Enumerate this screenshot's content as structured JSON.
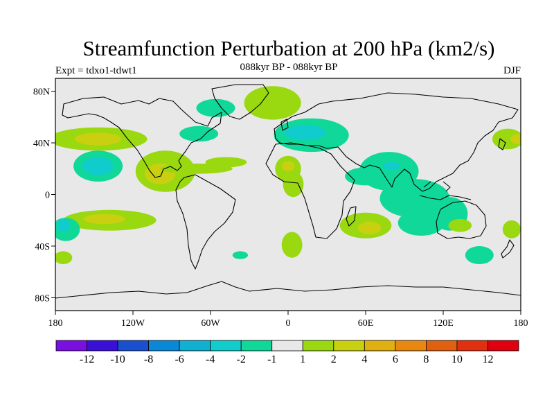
{
  "chart_data": {
    "type": "heatmap",
    "title": "Streamfunction Perturbation at 200 hPa (km2/s)",
    "subtitle": "088kyr BP - 088kyr BP",
    "left_label": "Expt = tdxo1-tdwt1",
    "right_label": "DJF",
    "xlim": [
      -180,
      180
    ],
    "ylim": [
      -90,
      90
    ],
    "x_ticks": [
      {
        "value": -180,
        "label": "180"
      },
      {
        "value": -120,
        "label": "120W"
      },
      {
        "value": -60,
        "label": "60W"
      },
      {
        "value": 0,
        "label": "0"
      },
      {
        "value": 60,
        "label": "60E"
      },
      {
        "value": 120,
        "label": "120E"
      },
      {
        "value": 180,
        "label": "180"
      }
    ],
    "y_ticks": [
      {
        "value": 80,
        "label": "80N"
      },
      {
        "value": 40,
        "label": "40N"
      },
      {
        "value": 0,
        "label": "0"
      },
      {
        "value": -40,
        "label": "40S"
      },
      {
        "value": -80,
        "label": "80S"
      }
    ],
    "colorbar": {
      "colors": [
        "#7a10e0",
        "#3a10d8",
        "#1a50d0",
        "#0a88d8",
        "#10b0d0",
        "#10cccc",
        "#10d898",
        "#e8e8e8",
        "#9ad810",
        "#c8d010",
        "#e0b010",
        "#e88810",
        "#e06010",
        "#e03010",
        "#e00010"
      ],
      "labels": [
        "-12",
        "-10",
        "-8",
        "-6",
        "-4",
        "-2",
        "-1",
        "1",
        "2",
        "4",
        "6",
        "8",
        "10",
        "12"
      ]
    },
    "regions": [
      {
        "lon": -147,
        "lat": 43,
        "rx": 38,
        "ry": 9,
        "level": 2
      },
      {
        "lon": -147,
        "lat": 43,
        "rx": 18,
        "ry": 5,
        "level": 4
      },
      {
        "lon": 170,
        "lat": 43,
        "rx": 12,
        "ry": 8,
        "level": 2
      },
      {
        "lon": 178,
        "lat": 43,
        "rx": 6,
        "ry": 4,
        "level": 4
      },
      {
        "lon": -147,
        "lat": 22,
        "rx": 19,
        "ry": 12,
        "level": -1
      },
      {
        "lon": -147,
        "lat": 22,
        "rx": 12,
        "ry": 7,
        "level": -2
      },
      {
        "lon": -95,
        "lat": 18,
        "rx": 23,
        "ry": 16,
        "level": 2
      },
      {
        "lon": -99,
        "lat": 16,
        "rx": 12,
        "ry": 8,
        "level": 4
      },
      {
        "lon": -71,
        "lat": 20,
        "rx": 28,
        "ry": 4,
        "level": 2
      },
      {
        "lon": -48,
        "lat": 25,
        "rx": 16,
        "ry": 4,
        "level": 2
      },
      {
        "lon": -56,
        "lat": 67,
        "rx": 15,
        "ry": 7,
        "level": -1
      },
      {
        "lon": -69,
        "lat": 47,
        "rx": 15,
        "ry": 6,
        "level": -1
      },
      {
        "lon": -12,
        "lat": 71,
        "rx": 22,
        "ry": 13,
        "level": 2
      },
      {
        "lon": 18,
        "lat": 46,
        "rx": 29,
        "ry": 13,
        "level": -1
      },
      {
        "lon": 13,
        "lat": 48,
        "rx": 16,
        "ry": 6,
        "level": -2
      },
      {
        "lon": 0,
        "lat": 20,
        "rx": 10,
        "ry": 10,
        "level": 2
      },
      {
        "lon": 0,
        "lat": 22,
        "rx": 5,
        "ry": 4,
        "level": 4
      },
      {
        "lon": 4,
        "lat": 8,
        "rx": 8,
        "ry": 10,
        "level": 2
      },
      {
        "lon": 78,
        "lat": 18,
        "rx": 23,
        "ry": 15,
        "level": -1
      },
      {
        "lon": 60,
        "lat": 14,
        "rx": 16,
        "ry": 7,
        "level": -1
      },
      {
        "lon": 98,
        "lat": -3,
        "rx": 27,
        "ry": 15,
        "level": -1
      },
      {
        "lon": 103,
        "lat": -22,
        "rx": 18,
        "ry": 10,
        "level": -1
      },
      {
        "lon": 125,
        "lat": -15,
        "rx": 14,
        "ry": 13,
        "level": -1
      },
      {
        "lon": 80,
        "lat": 22,
        "rx": 7,
        "ry": 3,
        "level": -2
      },
      {
        "lon": 133,
        "lat": -24,
        "rx": 9,
        "ry": 5,
        "level": 2
      },
      {
        "lon": 148,
        "lat": -47,
        "rx": 11,
        "ry": 7,
        "level": -1
      },
      {
        "lon": 173,
        "lat": -27,
        "rx": 7,
        "ry": 7,
        "level": 2
      },
      {
        "lon": 60,
        "lat": -24,
        "rx": 20,
        "ry": 10,
        "level": 2
      },
      {
        "lon": 63,
        "lat": -26,
        "rx": 9,
        "ry": 5,
        "level": 4
      },
      {
        "lon": 3,
        "lat": -39,
        "rx": 8,
        "ry": 10,
        "level": 2
      },
      {
        "lon": -138,
        "lat": -20,
        "rx": 36,
        "ry": 8,
        "level": 2
      },
      {
        "lon": -142,
        "lat": -19,
        "rx": 16,
        "ry": 4,
        "level": 4
      },
      {
        "lon": -172,
        "lat": -27,
        "rx": 11,
        "ry": 9,
        "level": -1
      },
      {
        "lon": -174,
        "lat": -24,
        "rx": 5,
        "ry": 5,
        "level": -2
      },
      {
        "lon": -174,
        "lat": -49,
        "rx": 7,
        "ry": 5,
        "level": 2
      },
      {
        "lon": -37,
        "lat": -47,
        "rx": 6,
        "ry": 3,
        "level": -1
      }
    ]
  }
}
